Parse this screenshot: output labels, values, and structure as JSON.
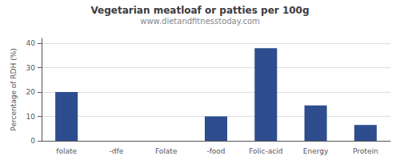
{
  "chart_data": {
    "type": "bar",
    "title": "Vegetarian meatloaf or patties per 100g",
    "subtitle": "www.dietandfitnesstoday.com",
    "ylabel": "Percentage of RDH (%)",
    "categories": [
      "folate",
      "-dfe",
      "Folate",
      "-food",
      "Folic-acid",
      "Energy",
      "Protein"
    ],
    "values": [
      20.0,
      0.0,
      0.0,
      10.0,
      38.0,
      14.5,
      6.5
    ],
    "color": "#2d4d8e",
    "ylim": [
      0,
      42
    ],
    "yticks": [
      0,
      10,
      20,
      30,
      40
    ],
    "grid": true
  }
}
